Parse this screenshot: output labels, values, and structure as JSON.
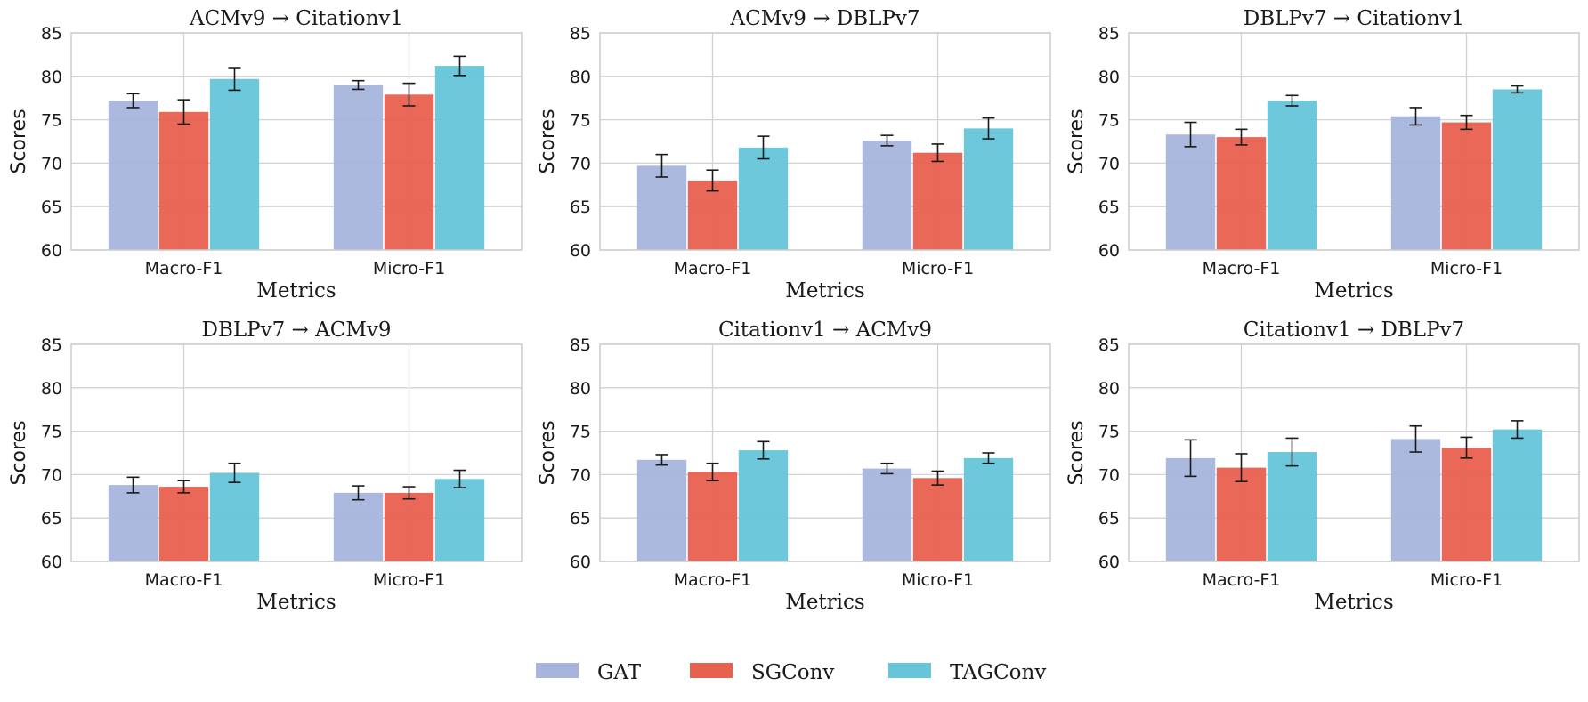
{
  "colors": {
    "GAT": "#a7b5dc",
    "SGConv": "#e8604f",
    "TAGConv": "#66c5d9"
  },
  "legend": [
    "GAT",
    "SGConv",
    "TAGConv"
  ],
  "chart_data": [
    {
      "type": "bar",
      "title": "ACMv9 → Citationv1",
      "xlabel": "Metrics",
      "ylabel": "Scores",
      "ylim": [
        60,
        85
      ],
      "yticks": [
        60,
        65,
        70,
        75,
        80,
        85
      ],
      "categories": [
        "Macro-F1",
        "Micro-F1"
      ],
      "series": [
        {
          "name": "GAT",
          "values": [
            77.2,
            79.0
          ],
          "errors": [
            0.8,
            0.5
          ]
        },
        {
          "name": "SGConv",
          "values": [
            75.9,
            77.9
          ],
          "errors": [
            1.4,
            1.3
          ]
        },
        {
          "name": "TAGConv",
          "values": [
            79.7,
            81.2
          ],
          "errors": [
            1.3,
            1.1
          ]
        }
      ]
    },
    {
      "type": "bar",
      "title": "ACMv9 → DBLPv7",
      "xlabel": "Metrics",
      "ylabel": "Scores",
      "ylim": [
        60,
        85
      ],
      "yticks": [
        60,
        65,
        70,
        75,
        80,
        85
      ],
      "categories": [
        "Macro-F1",
        "Micro-F1"
      ],
      "series": [
        {
          "name": "GAT",
          "values": [
            69.7,
            72.6
          ],
          "errors": [
            1.3,
            0.6
          ]
        },
        {
          "name": "SGConv",
          "values": [
            68.0,
            71.2
          ],
          "errors": [
            1.2,
            1.0
          ]
        },
        {
          "name": "TAGConv",
          "values": [
            71.8,
            74.0
          ],
          "errors": [
            1.3,
            1.2
          ]
        }
      ]
    },
    {
      "type": "bar",
      "title": "DBLPv7 → Citationv1",
      "xlabel": "Metrics",
      "ylabel": "Scores",
      "ylim": [
        60,
        85
      ],
      "yticks": [
        60,
        65,
        70,
        75,
        80,
        85
      ],
      "categories": [
        "Macro-F1",
        "Micro-F1"
      ],
      "series": [
        {
          "name": "GAT",
          "values": [
            73.3,
            75.4
          ],
          "errors": [
            1.4,
            1.0
          ]
        },
        {
          "name": "SGConv",
          "values": [
            73.0,
            74.7
          ],
          "errors": [
            0.9,
            0.8
          ]
        },
        {
          "name": "TAGConv",
          "values": [
            77.2,
            78.5
          ],
          "errors": [
            0.6,
            0.4
          ]
        }
      ]
    },
    {
      "type": "bar",
      "title": "DBLPv7 → ACMv9",
      "xlabel": "Metrics",
      "ylabel": "Scores",
      "ylim": [
        60,
        85
      ],
      "yticks": [
        60,
        65,
        70,
        75,
        80,
        85
      ],
      "categories": [
        "Macro-F1",
        "Micro-F1"
      ],
      "series": [
        {
          "name": "GAT",
          "values": [
            68.8,
            67.9
          ],
          "errors": [
            0.9,
            0.8
          ]
        },
        {
          "name": "SGConv",
          "values": [
            68.6,
            67.9
          ],
          "errors": [
            0.7,
            0.7
          ]
        },
        {
          "name": "TAGConv",
          "values": [
            70.2,
            69.5
          ],
          "errors": [
            1.1,
            1.0
          ]
        }
      ]
    },
    {
      "type": "bar",
      "title": "Citationv1 → ACMv9",
      "xlabel": "Metrics",
      "ylabel": "Scores",
      "ylim": [
        60,
        85
      ],
      "yticks": [
        60,
        65,
        70,
        75,
        80,
        85
      ],
      "categories": [
        "Macro-F1",
        "Micro-F1"
      ],
      "series": [
        {
          "name": "GAT",
          "values": [
            71.7,
            70.7
          ],
          "errors": [
            0.6,
            0.6
          ]
        },
        {
          "name": "SGConv",
          "values": [
            70.3,
            69.6
          ],
          "errors": [
            1.0,
            0.8
          ]
        },
        {
          "name": "TAGConv",
          "values": [
            72.8,
            71.9
          ],
          "errors": [
            1.0,
            0.6
          ]
        }
      ]
    },
    {
      "type": "bar",
      "title": "Citationv1 → DBLPv7",
      "xlabel": "Metrics",
      "ylabel": "Scores",
      "ylim": [
        60,
        85
      ],
      "yticks": [
        60,
        65,
        70,
        75,
        80,
        85
      ],
      "categories": [
        "Macro-F1",
        "Micro-F1"
      ],
      "series": [
        {
          "name": "GAT",
          "values": [
            71.9,
            74.1
          ],
          "errors": [
            2.1,
            1.5
          ]
        },
        {
          "name": "SGConv",
          "values": [
            70.8,
            73.1
          ],
          "errors": [
            1.6,
            1.2
          ]
        },
        {
          "name": "TAGConv",
          "values": [
            72.6,
            75.2
          ],
          "errors": [
            1.6,
            1.0
          ]
        }
      ]
    }
  ]
}
